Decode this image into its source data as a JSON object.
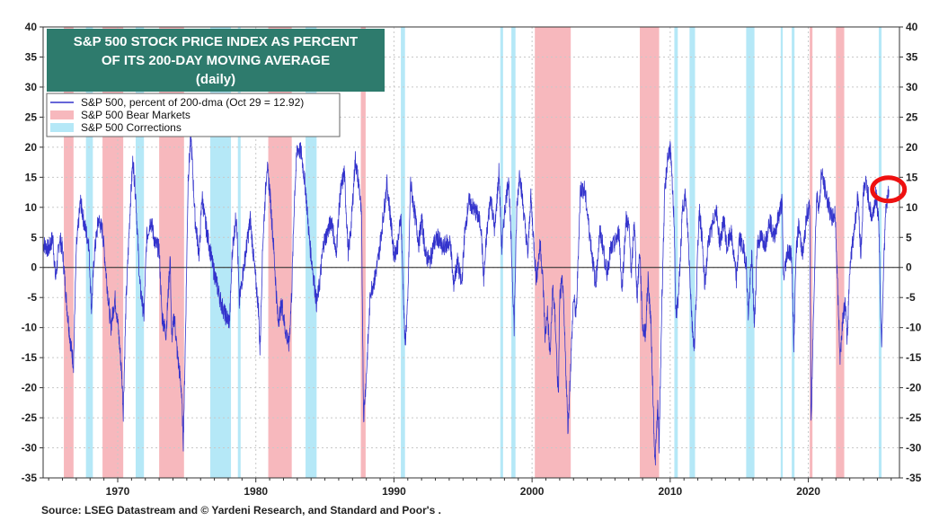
{
  "chart_data": {
    "type": "line",
    "title": "S&P 500 STOCK PRICE INDEX AS PERCENT OF ITS 200-DAY MOVING AVERAGE (daily)",
    "title_lines": [
      "S&P 500 STOCK PRICE INDEX AS PERCENT",
      "OF ITS 200-DAY MOVING AVERAGE",
      "(daily)"
    ],
    "xlim": [
      1964.6,
      2026.6
    ],
    "ylim": [
      -35,
      40
    ],
    "grid": true,
    "legend_position": "top-left",
    "x_ticks": [
      {
        "value": 1970,
        "label": "1970"
      },
      {
        "value": 1980,
        "label": "1980"
      },
      {
        "value": 1990,
        "label": "1990"
      },
      {
        "value": 2000,
        "label": "2000"
      },
      {
        "value": 2010,
        "label": "2010"
      },
      {
        "value": 2020,
        "label": "2020"
      }
    ],
    "y_ticks": [
      40,
      35,
      30,
      25,
      20,
      15,
      10,
      5,
      0,
      -5,
      -10,
      -15,
      -20,
      -25,
      -30,
      -35
    ],
    "legend": [
      {
        "label": "S&P 500, percent of 200-dma (Oct 29 = 12.92)",
        "kind": "line",
        "color": "#3333cc"
      },
      {
        "label": "S&P 500 Bear Markets",
        "kind": "box",
        "color": "#f7b8bd"
      },
      {
        "label": "S&P 500 Corrections",
        "kind": "box",
        "color": "#b5e8f7"
      }
    ],
    "bear_markets": [
      [
        1966.1,
        1966.8
      ],
      [
        1968.9,
        1970.4
      ],
      [
        1973.0,
        1974.8
      ],
      [
        1980.9,
        1982.6
      ],
      [
        1987.6,
        1987.95
      ],
      [
        2000.2,
        2002.8
      ],
      [
        2007.8,
        2009.2
      ],
      [
        2020.1,
        2020.3
      ],
      [
        2022.0,
        2022.6
      ]
    ],
    "corrections": [
      [
        1967.7,
        1968.2
      ],
      [
        1971.3,
        1971.9
      ],
      [
        1976.7,
        1978.2
      ],
      [
        1978.7,
        1978.9
      ],
      [
        1983.6,
        1984.4
      ],
      [
        1990.5,
        1990.8
      ],
      [
        1997.7,
        1997.9
      ],
      [
        1998.5,
        1998.8
      ],
      [
        2010.3,
        2010.55
      ],
      [
        2011.4,
        2011.8
      ],
      [
        2015.5,
        2016.1
      ],
      [
        2018.0,
        2018.15
      ],
      [
        2018.8,
        2019.0
      ],
      [
        2025.1,
        2025.3
      ]
    ],
    "series": [
      {
        "name": "S&P 500, percent of 200-dma (Oct 29 = 12.92)",
        "color": "#3333cc",
        "points": [
          [
            1964.6,
            4
          ],
          [
            1965.0,
            3
          ],
          [
            1965.3,
            5
          ],
          [
            1965.5,
            -2
          ],
          [
            1965.8,
            5
          ],
          [
            1966.0,
            3
          ],
          [
            1966.3,
            -6
          ],
          [
            1966.6,
            -13
          ],
          [
            1966.8,
            -16
          ],
          [
            1967.0,
            3
          ],
          [
            1967.3,
            11
          ],
          [
            1967.6,
            7
          ],
          [
            1967.9,
            4
          ],
          [
            1968.1,
            -7
          ],
          [
            1968.3,
            2
          ],
          [
            1968.6,
            8
          ],
          [
            1968.9,
            6
          ],
          [
            1969.2,
            -2
          ],
          [
            1969.5,
            -10
          ],
          [
            1969.8,
            -5
          ],
          [
            1970.0,
            -9
          ],
          [
            1970.3,
            -18
          ],
          [
            1970.4,
            -24
          ],
          [
            1970.6,
            -6
          ],
          [
            1970.9,
            10
          ],
          [
            1971.1,
            18
          ],
          [
            1971.3,
            12
          ],
          [
            1971.6,
            -3
          ],
          [
            1971.9,
            -8
          ],
          [
            1972.1,
            5
          ],
          [
            1972.4,
            8
          ],
          [
            1972.7,
            4
          ],
          [
            1973.0,
            3
          ],
          [
            1973.2,
            -8
          ],
          [
            1973.5,
            -11
          ],
          [
            1973.8,
            2
          ],
          [
            1973.9,
            -12
          ],
          [
            1974.1,
            -8
          ],
          [
            1974.3,
            -14
          ],
          [
            1974.6,
            -20
          ],
          [
            1974.75,
            -29
          ],
          [
            1974.9,
            -12
          ],
          [
            1975.1,
            15
          ],
          [
            1975.3,
            22
          ],
          [
            1975.6,
            8
          ],
          [
            1975.9,
            2
          ],
          [
            1976.1,
            12
          ],
          [
            1976.3,
            8
          ],
          [
            1976.6,
            4
          ],
          [
            1976.9,
            0
          ],
          [
            1977.2,
            -3
          ],
          [
            1977.5,
            -6
          ],
          [
            1977.8,
            -8
          ],
          [
            1978.1,
            -9
          ],
          [
            1978.3,
            3
          ],
          [
            1978.6,
            9
          ],
          [
            1978.8,
            -6
          ],
          [
            1979.0,
            -2
          ],
          [
            1979.3,
            3
          ],
          [
            1979.6,
            8
          ],
          [
            1979.9,
            0
          ],
          [
            1980.2,
            -7
          ],
          [
            1980.3,
            -14
          ],
          [
            1980.5,
            4
          ],
          [
            1980.8,
            17
          ],
          [
            1981.0,
            13
          ],
          [
            1981.3,
            3
          ],
          [
            1981.6,
            -9
          ],
          [
            1981.9,
            -6
          ],
          [
            1982.1,
            -10
          ],
          [
            1982.4,
            -13
          ],
          [
            1982.6,
            -4
          ],
          [
            1982.8,
            12
          ],
          [
            1983.0,
            20
          ],
          [
            1983.3,
            19
          ],
          [
            1983.6,
            13
          ],
          [
            1983.9,
            4
          ],
          [
            1984.2,
            -2
          ],
          [
            1984.4,
            -6
          ],
          [
            1984.6,
            -3
          ],
          [
            1984.9,
            4
          ],
          [
            1985.2,
            6
          ],
          [
            1985.5,
            8
          ],
          [
            1985.8,
            2
          ],
          [
            1986.1,
            12
          ],
          [
            1986.4,
            16
          ],
          [
            1986.7,
            2
          ],
          [
            1986.9,
            7
          ],
          [
            1987.2,
            18
          ],
          [
            1987.5,
            13
          ],
          [
            1987.65,
            8
          ],
          [
            1987.8,
            -25
          ],
          [
            1988.0,
            -18
          ],
          [
            1988.3,
            -4
          ],
          [
            1988.6,
            -2
          ],
          [
            1988.9,
            2
          ],
          [
            1989.2,
            8
          ],
          [
            1989.5,
            14
          ],
          [
            1989.8,
            7
          ],
          [
            1990.0,
            2
          ],
          [
            1990.3,
            4
          ],
          [
            1990.5,
            9
          ],
          [
            1990.8,
            -13
          ],
          [
            1991.0,
            -6
          ],
          [
            1991.2,
            14
          ],
          [
            1991.5,
            9
          ],
          [
            1991.8,
            4
          ],
          [
            1992.0,
            8
          ],
          [
            1992.3,
            2
          ],
          [
            1992.6,
            1
          ],
          [
            1992.9,
            4
          ],
          [
            1993.2,
            5
          ],
          [
            1993.5,
            3
          ],
          [
            1993.8,
            4
          ],
          [
            1994.1,
            4
          ],
          [
            1994.3,
            -3
          ],
          [
            1994.6,
            1
          ],
          [
            1994.9,
            -3
          ],
          [
            1995.1,
            5
          ],
          [
            1995.4,
            11
          ],
          [
            1995.7,
            10
          ],
          [
            1996.0,
            9
          ],
          [
            1996.3,
            7
          ],
          [
            1996.5,
            -2
          ],
          [
            1996.7,
            5
          ],
          [
            1997.0,
            12
          ],
          [
            1997.3,
            6
          ],
          [
            1997.6,
            16
          ],
          [
            1997.8,
            3
          ],
          [
            1998.0,
            9
          ],
          [
            1998.3,
            15
          ],
          [
            1998.6,
            -3
          ],
          [
            1998.7,
            -10
          ],
          [
            1998.9,
            10
          ],
          [
            1999.1,
            16
          ],
          [
            1999.4,
            9
          ],
          [
            1999.7,
            2
          ],
          [
            1999.9,
            12
          ],
          [
            2000.1,
            5
          ],
          [
            2000.3,
            -2
          ],
          [
            2000.6,
            4
          ],
          [
            2000.8,
            -3
          ],
          [
            2000.95,
            -12
          ],
          [
            2001.1,
            -7
          ],
          [
            2001.3,
            -15
          ],
          [
            2001.5,
            -3
          ],
          [
            2001.7,
            -10
          ],
          [
            2001.9,
            -22
          ],
          [
            2002.0,
            -5
          ],
          [
            2002.2,
            -2
          ],
          [
            2002.4,
            -14
          ],
          [
            2002.6,
            -27
          ],
          [
            2002.8,
            -16
          ],
          [
            2003.0,
            -5
          ],
          [
            2003.2,
            -8
          ],
          [
            2003.5,
            13
          ],
          [
            2003.8,
            13
          ],
          [
            2004.0,
            9
          ],
          [
            2004.3,
            3
          ],
          [
            2004.6,
            -3
          ],
          [
            2004.9,
            6
          ],
          [
            2005.1,
            4
          ],
          [
            2005.4,
            -1
          ],
          [
            2005.7,
            3
          ],
          [
            2006.0,
            4
          ],
          [
            2006.3,
            6
          ],
          [
            2006.5,
            -4
          ],
          [
            2006.8,
            8
          ],
          [
            2007.0,
            7
          ],
          [
            2007.2,
            -1
          ],
          [
            2007.4,
            8
          ],
          [
            2007.6,
            -5
          ],
          [
            2007.8,
            3
          ],
          [
            2008.0,
            -10
          ],
          [
            2008.2,
            -11
          ],
          [
            2008.4,
            -2
          ],
          [
            2008.6,
            -9
          ],
          [
            2008.8,
            -25
          ],
          [
            2008.9,
            -33
          ],
          [
            2009.1,
            -23
          ],
          [
            2009.2,
            -30
          ],
          [
            2009.4,
            -5
          ],
          [
            2009.6,
            12
          ],
          [
            2009.8,
            18
          ],
          [
            2010.0,
            20
          ],
          [
            2010.3,
            7
          ],
          [
            2010.4,
            -8
          ],
          [
            2010.6,
            -5
          ],
          [
            2010.9,
            10
          ],
          [
            2011.1,
            12
          ],
          [
            2011.3,
            5
          ],
          [
            2011.6,
            -10
          ],
          [
            2011.75,
            -13
          ],
          [
            2011.9,
            -4
          ],
          [
            2012.1,
            10
          ],
          [
            2012.3,
            5
          ],
          [
            2012.5,
            -3
          ],
          [
            2012.8,
            5
          ],
          [
            2013.0,
            6
          ],
          [
            2013.3,
            10
          ],
          [
            2013.6,
            4
          ],
          [
            2013.9,
            8
          ],
          [
            2014.1,
            3
          ],
          [
            2014.4,
            6
          ],
          [
            2014.8,
            -2
          ],
          [
            2015.0,
            5
          ],
          [
            2015.3,
            3
          ],
          [
            2015.5,
            1
          ],
          [
            2015.65,
            -8
          ],
          [
            2015.9,
            2
          ],
          [
            2016.1,
            -10
          ],
          [
            2016.3,
            4
          ],
          [
            2016.6,
            5
          ],
          [
            2016.9,
            4
          ],
          [
            2017.2,
            8
          ],
          [
            2017.5,
            5
          ],
          [
            2017.8,
            8
          ],
          [
            2018.1,
            11
          ],
          [
            2018.2,
            -2
          ],
          [
            2018.5,
            3
          ],
          [
            2018.8,
            2
          ],
          [
            2018.95,
            -14
          ],
          [
            2019.1,
            2
          ],
          [
            2019.3,
            7
          ],
          [
            2019.6,
            2
          ],
          [
            2019.9,
            9
          ],
          [
            2020.1,
            10
          ],
          [
            2020.2,
            -27
          ],
          [
            2020.4,
            -5
          ],
          [
            2020.6,
            12
          ],
          [
            2020.8,
            10
          ],
          [
            2020.95,
            16
          ],
          [
            2021.1,
            14
          ],
          [
            2021.4,
            11
          ],
          [
            2021.7,
            8
          ],
          [
            2021.95,
            9
          ],
          [
            2022.1,
            -2
          ],
          [
            2022.3,
            -15
          ],
          [
            2022.5,
            -8
          ],
          [
            2022.7,
            -6
          ],
          [
            2022.8,
            -13
          ],
          [
            2023.0,
            0
          ],
          [
            2023.2,
            4
          ],
          [
            2023.4,
            8
          ],
          [
            2023.6,
            12
          ],
          [
            2023.8,
            2
          ],
          [
            2024.0,
            13
          ],
          [
            2024.2,
            14
          ],
          [
            2024.4,
            11
          ],
          [
            2024.6,
            8
          ],
          [
            2024.9,
            12
          ],
          [
            2025.1,
            8
          ],
          [
            2025.2,
            -3
          ],
          [
            2025.3,
            -13
          ],
          [
            2025.45,
            0
          ],
          [
            2025.6,
            9
          ],
          [
            2025.83,
            12.92
          ]
        ]
      }
    ],
    "annotation": {
      "type": "circle",
      "x": 2025.8,
      "y": 13,
      "color": "#e11"
    }
  },
  "source": "Source: LSEG Datastream and © Yardeni Research, and Standard and Poor's ."
}
